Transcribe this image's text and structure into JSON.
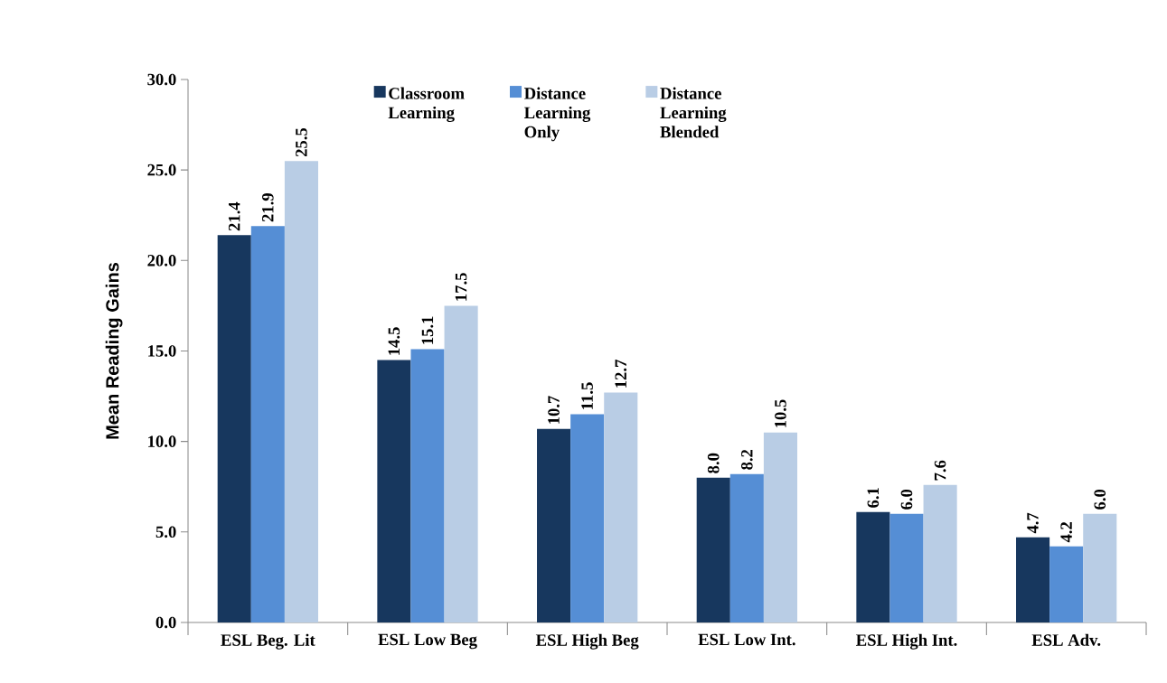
{
  "chart_data": {
    "type": "bar",
    "ylabel": "Mean Reading Gains",
    "categories": [
      "ESL Beg. Lit",
      "ESL Low Beg",
      "ESL High Beg",
      "ESL Low Int.",
      "ESL High Int.",
      "ESL Adv."
    ],
    "series": [
      {
        "name": "Classroom Learning",
        "color": "#17375e",
        "values": [
          21.4,
          14.5,
          10.7,
          8.0,
          6.1,
          4.7
        ],
        "value_labels": [
          "21.4",
          "14.5",
          "10.7",
          "8.0",
          "6.1",
          "4.7"
        ]
      },
      {
        "name": "Distance Learning Only",
        "color": "#558ed5",
        "values": [
          21.9,
          15.1,
          11.5,
          8.2,
          6.0,
          4.2
        ],
        "value_labels": [
          "21.9",
          "15.1",
          "11.5",
          "8.2",
          "6.0",
          "4.2"
        ]
      },
      {
        "name": "Distance Learning Blended",
        "color": "#b9cde5",
        "values": [
          25.5,
          17.5,
          12.7,
          10.5,
          7.6,
          6.0
        ],
        "value_labels": [
          "25.5",
          "17.5",
          "12.7",
          "10.5",
          "7.6",
          "6.0"
        ]
      }
    ],
    "ylim": [
      0,
      30
    ],
    "yticks": [
      {
        "value": 0,
        "label": "0.0"
      },
      {
        "value": 5,
        "label": "5.0"
      },
      {
        "value": 10,
        "label": "10.0"
      },
      {
        "value": 15,
        "label": "15.0"
      },
      {
        "value": 20,
        "label": "20.0"
      },
      {
        "value": 25,
        "label": "25.0"
      },
      {
        "value": 30,
        "label": "30.0"
      }
    ],
    "legend": "top",
    "grid": false
  }
}
